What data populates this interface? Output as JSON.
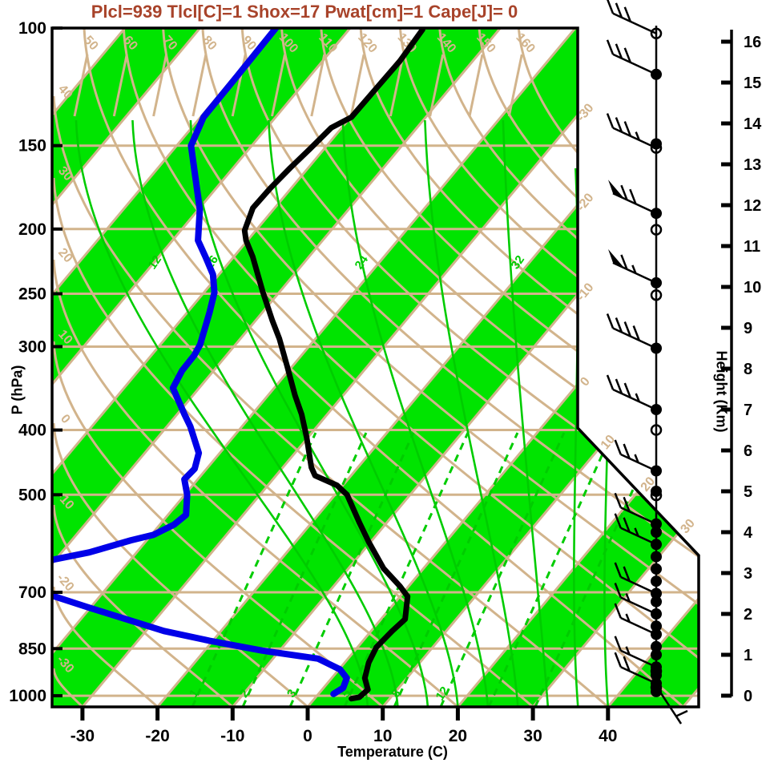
{
  "title": {
    "text": "Plcl=939 Tlcl[C]=1 Shox=17 Pwat[cm]=1 Cape[J]= 0",
    "color": "#A8432A"
  },
  "axes": {
    "pressure": {
      "label": "P (hPa)",
      "ticks": [
        100,
        150,
        200,
        250,
        300,
        400,
        500,
        700,
        850,
        1000
      ]
    },
    "temperature": {
      "label": "Temperature (C)",
      "ticks": [
        -30,
        -20,
        -10,
        0,
        10,
        20,
        30,
        40
      ]
    },
    "height": {
      "label": "Height (Km)",
      "ticks": [
        0,
        1,
        2,
        3,
        4,
        5,
        6,
        7,
        8,
        9,
        10,
        11,
        12,
        13,
        14,
        15,
        16
      ]
    }
  },
  "chart_data": {
    "type": "skewt-logp-sounding",
    "parameters": {
      "plcl_hpa": 939,
      "tlcl_c": 1,
      "showalter": 17,
      "pwat_cm": 1,
      "cape_j": 0
    },
    "background": {
      "green_band_color": "#00E400",
      "line_tan_color": "#D2B48C",
      "isotherm_step_c": 10,
      "isotherm_edge_labels": [
        -30,
        -20,
        -10,
        0,
        10,
        20,
        30
      ],
      "dry_adiabat_labels_c": [
        -30,
        -20,
        -10,
        0,
        10,
        20,
        30,
        40,
        50,
        60,
        70,
        80,
        90,
        100,
        110,
        120,
        130,
        140,
        150,
        160
      ],
      "moist_adiabat_labels_c": [
        12,
        16,
        24,
        32
      ],
      "moist_adiabat_curves_c": [
        8,
        12,
        16,
        20,
        24,
        28,
        32,
        36,
        40
      ],
      "mixing_ratio_labels_gkg": [
        1,
        2,
        3,
        5,
        8,
        12
      ],
      "mixing_ratio_extra_lines": [
        16,
        20
      ]
    },
    "temperature_profile_c": [
      [
        1010,
        4.9
      ],
      [
        1005,
        5.8
      ],
      [
        979,
        6.1
      ],
      [
        941,
        4.4
      ],
      [
        892,
        3.2
      ],
      [
        846,
        2.5
      ],
      [
        800,
        2.8
      ],
      [
        768,
        3.2
      ],
      [
        710,
        1.0
      ],
      [
        685,
        -1.2
      ],
      [
        645,
        -5.3
      ],
      [
        589,
        -10.2
      ],
      [
        551,
        -13.6
      ],
      [
        500,
        -18.4
      ],
      [
        484,
        -20.8
      ],
      [
        468,
        -24.8
      ],
      [
        455,
        -26.2
      ],
      [
        410,
        -30.2
      ],
      [
        379,
        -33.4
      ],
      [
        355,
        -36.4
      ],
      [
        321,
        -40.7
      ],
      [
        292,
        -44.8
      ],
      [
        274,
        -47.8
      ],
      [
        248,
        -52.3
      ],
      [
        220,
        -57.5
      ],
      [
        208,
        -60.2
      ],
      [
        201,
        -61.5
      ],
      [
        186,
        -62.9
      ],
      [
        174,
        -62.8
      ],
      [
        162,
        -62.4
      ],
      [
        152,
        -61.9
      ],
      [
        141,
        -61.4
      ],
      [
        136,
        -59.9
      ],
      [
        123,
        -59.8
      ],
      [
        112,
        -59.7
      ],
      [
        100.5,
        -60.2
      ]
    ],
    "dewpoint_profile_c": [
      [
        994,
        2.0
      ],
      [
        973,
        2.6
      ],
      [
        941,
        2.0
      ],
      [
        913,
        0.1
      ],
      [
        880,
        -4.0
      ],
      [
        856,
        -12.3
      ],
      [
        827,
        -20.5
      ],
      [
        800,
        -27.6
      ],
      [
        736,
        -40.6
      ],
      [
        706,
        -46.9
      ],
      [
        663,
        -48.9
      ],
      [
        627,
        -50.7
      ],
      [
        610,
        -46.3
      ],
      [
        585,
        -42.1
      ],
      [
        574,
        -39.7
      ],
      [
        554,
        -38.1
      ],
      [
        536,
        -37.6
      ],
      [
        500,
        -39.7
      ],
      [
        474,
        -41.8
      ],
      [
        457,
        -41.6
      ],
      [
        433,
        -42.8
      ],
      [
        395,
        -46.9
      ],
      [
        379,
        -49.0
      ],
      [
        346,
        -53.5
      ],
      [
        326,
        -54.2
      ],
      [
        309,
        -54.3
      ],
      [
        298,
        -54.7
      ],
      [
        267,
        -57.0
      ],
      [
        249,
        -58.6
      ],
      [
        234,
        -60.8
      ],
      [
        220,
        -63.8
      ],
      [
        208,
        -66.6
      ],
      [
        187,
        -69.8
      ],
      [
        150,
        -78.1
      ],
      [
        136,
        -79.6
      ],
      [
        118,
        -79.7
      ],
      [
        100,
        -79.9
      ]
    ],
    "wind_barbs": [
      {
        "km": 16.2,
        "kt": 30
      },
      {
        "km": 15.2,
        "kt": 30
      },
      {
        "km": 13.4,
        "kt": 35
      },
      {
        "km": 11.8,
        "kt": 70
      },
      {
        "km": 10.1,
        "kt": 65
      },
      {
        "km": 8.5,
        "kt": 40
      },
      {
        "km": 7.0,
        "kt": 35
      },
      {
        "km": 5.5,
        "kt": 25
      },
      {
        "km": 4.2,
        "kt": 20
      },
      {
        "km": 3.7,
        "kt": 25
      },
      {
        "km": 2.5,
        "kt": 20
      },
      {
        "km": 2.0,
        "kt": 15
      },
      {
        "km": 1.5,
        "kt": 15
      },
      {
        "km": 0.7,
        "kt": 15
      },
      {
        "km": 0.3,
        "kt": 20
      },
      {
        "km": 0.1,
        "kt": 5
      }
    ],
    "station_dots_km": [
      15.2,
      13.5,
      11.8,
      10.1,
      8.5,
      7.0,
      5.5,
      5.0,
      4.2,
      4.0,
      3.7,
      3.4,
      3.1,
      2.8,
      2.5,
      2.3,
      2.0,
      1.7,
      1.5,
      1.2,
      1.0,
      0.7,
      0.5,
      0.3,
      0.1
    ],
    "station_circles_km": [
      16.2,
      13.4,
      11.4,
      9.8,
      6.5,
      4.9,
      0.6,
      0.2
    ],
    "curve_colors": {
      "temperature": "#000000",
      "dewpoint": "#0000E8"
    }
  }
}
